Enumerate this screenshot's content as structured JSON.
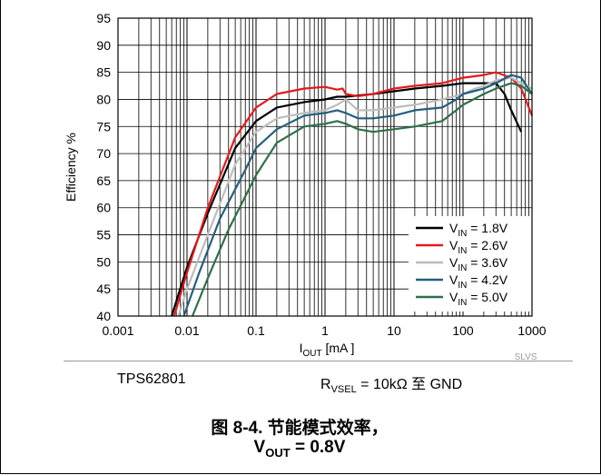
{
  "chart_data": {
    "type": "line",
    "x_scale": "log",
    "xlabel": {
      "main": "I",
      "sub": "OUT",
      "rest": " [mA ]"
    },
    "ylabel": "Efficiency %",
    "xlim": [
      0.001,
      1000
    ],
    "ylim": [
      40,
      95
    ],
    "x_ticks": [
      "0.001",
      "0.01",
      "0.1",
      "1",
      "10",
      "100",
      "1000"
    ],
    "y_ticks": [
      "40",
      "45",
      "50",
      "55",
      "60",
      "65",
      "70",
      "75",
      "80",
      "85",
      "90",
      "95"
    ],
    "grid": true,
    "legend_position": "bottom-right",
    "watermark": "SLVS",
    "series": [
      {
        "name": {
          "main": "V",
          "sub": "IN",
          "rest": " = 1.8V"
        },
        "color": "#000000",
        "points": [
          [
            0.006,
            40
          ],
          [
            0.01,
            49
          ],
          [
            0.02,
            59
          ],
          [
            0.05,
            71
          ],
          [
            0.1,
            76
          ],
          [
            0.2,
            78.5
          ],
          [
            0.5,
            79.5
          ],
          [
            1,
            80
          ],
          [
            1.5,
            80.5
          ],
          [
            2,
            80.5
          ],
          [
            5,
            81
          ],
          [
            10,
            81.5
          ],
          [
            20,
            82
          ],
          [
            50,
            82.5
          ],
          [
            100,
            83
          ],
          [
            150,
            83
          ],
          [
            200,
            83
          ],
          [
            300,
            83
          ],
          [
            400,
            81
          ],
          [
            500,
            78
          ],
          [
            700,
            74
          ]
        ]
      },
      {
        "name": {
          "main": "V",
          "sub": "IN",
          "rest": " = 2.6V"
        },
        "color": "#e41a1c",
        "points": [
          [
            0.0065,
            40
          ],
          [
            0.01,
            48
          ],
          [
            0.02,
            60
          ],
          [
            0.05,
            73
          ],
          [
            0.1,
            78.5
          ],
          [
            0.2,
            81
          ],
          [
            0.5,
            82
          ],
          [
            1,
            82.3
          ],
          [
            1.5,
            81.8
          ],
          [
            1.8,
            82
          ],
          [
            2,
            81
          ],
          [
            3,
            80.6
          ],
          [
            5,
            81
          ],
          [
            10,
            82
          ],
          [
            20,
            82.5
          ],
          [
            50,
            83
          ],
          [
            100,
            84
          ],
          [
            200,
            84.5
          ],
          [
            300,
            85
          ],
          [
            500,
            84
          ],
          [
            700,
            82
          ],
          [
            1000,
            77
          ]
        ]
      },
      {
        "name": {
          "main": "V",
          "sub": "IN",
          "rest": " = 3.6V"
        },
        "color": "#bdbdbd",
        "points": [
          [
            0.0075,
            40
          ],
          [
            0.01,
            45
          ],
          [
            0.02,
            55
          ],
          [
            0.05,
            68
          ],
          [
            0.1,
            74
          ],
          [
            0.2,
            76.5
          ],
          [
            0.5,
            77.5
          ],
          [
            1,
            78
          ],
          [
            1.5,
            79
          ],
          [
            2,
            80
          ],
          [
            3,
            78
          ],
          [
            5,
            78
          ],
          [
            10,
            78.5
          ],
          [
            20,
            79
          ],
          [
            50,
            80
          ],
          [
            100,
            81
          ],
          [
            150,
            82
          ],
          [
            200,
            82.5
          ],
          [
            300,
            83.5
          ],
          [
            500,
            84
          ],
          [
            700,
            83
          ],
          [
            1000,
            82
          ]
        ]
      },
      {
        "name": {
          "main": "V",
          "sub": "IN",
          "rest": " = 4.2V"
        },
        "color": "#245f7c",
        "points": [
          [
            0.009,
            40
          ],
          [
            0.015,
            48
          ],
          [
            0.03,
            58
          ],
          [
            0.07,
            67
          ],
          [
            0.1,
            71
          ],
          [
            0.2,
            74.5
          ],
          [
            0.5,
            77
          ],
          [
            1,
            77.5
          ],
          [
            1.5,
            78
          ],
          [
            2,
            77.5
          ],
          [
            3,
            76.5
          ],
          [
            5,
            76.5
          ],
          [
            10,
            77
          ],
          [
            20,
            78
          ],
          [
            50,
            78.5
          ],
          [
            80,
            80
          ],
          [
            100,
            81
          ],
          [
            200,
            82
          ],
          [
            300,
            83
          ],
          [
            500,
            84.5
          ],
          [
            700,
            84
          ],
          [
            1000,
            81
          ]
        ]
      },
      {
        "name": {
          "main": "V",
          "sub": "IN",
          "rest": " = 5.0V"
        },
        "color": "#2f6f4a",
        "points": [
          [
            0.012,
            40
          ],
          [
            0.02,
            47
          ],
          [
            0.04,
            56
          ],
          [
            0.1,
            66
          ],
          [
            0.2,
            72
          ],
          [
            0.5,
            75
          ],
          [
            1,
            75.5
          ],
          [
            1.5,
            76
          ],
          [
            2,
            75.5
          ],
          [
            3,
            74.5
          ],
          [
            5,
            74
          ],
          [
            10,
            74.5
          ],
          [
            20,
            75
          ],
          [
            50,
            76
          ],
          [
            80,
            78
          ],
          [
            100,
            79
          ],
          [
            200,
            81
          ],
          [
            300,
            82
          ],
          [
            500,
            83
          ],
          [
            700,
            82.5
          ],
          [
            1000,
            81
          ]
        ]
      }
    ]
  },
  "footer": {
    "part": "TPS62801",
    "rvsel": {
      "main": "R",
      "sub": "VSEL",
      "rest": " = 10kΩ  至 GND"
    }
  },
  "caption": {
    "line1": "图 8-4. 节能模式效率，",
    "line2": {
      "main": "V",
      "sub": "OUT",
      "rest": " = 0.8V"
    }
  }
}
